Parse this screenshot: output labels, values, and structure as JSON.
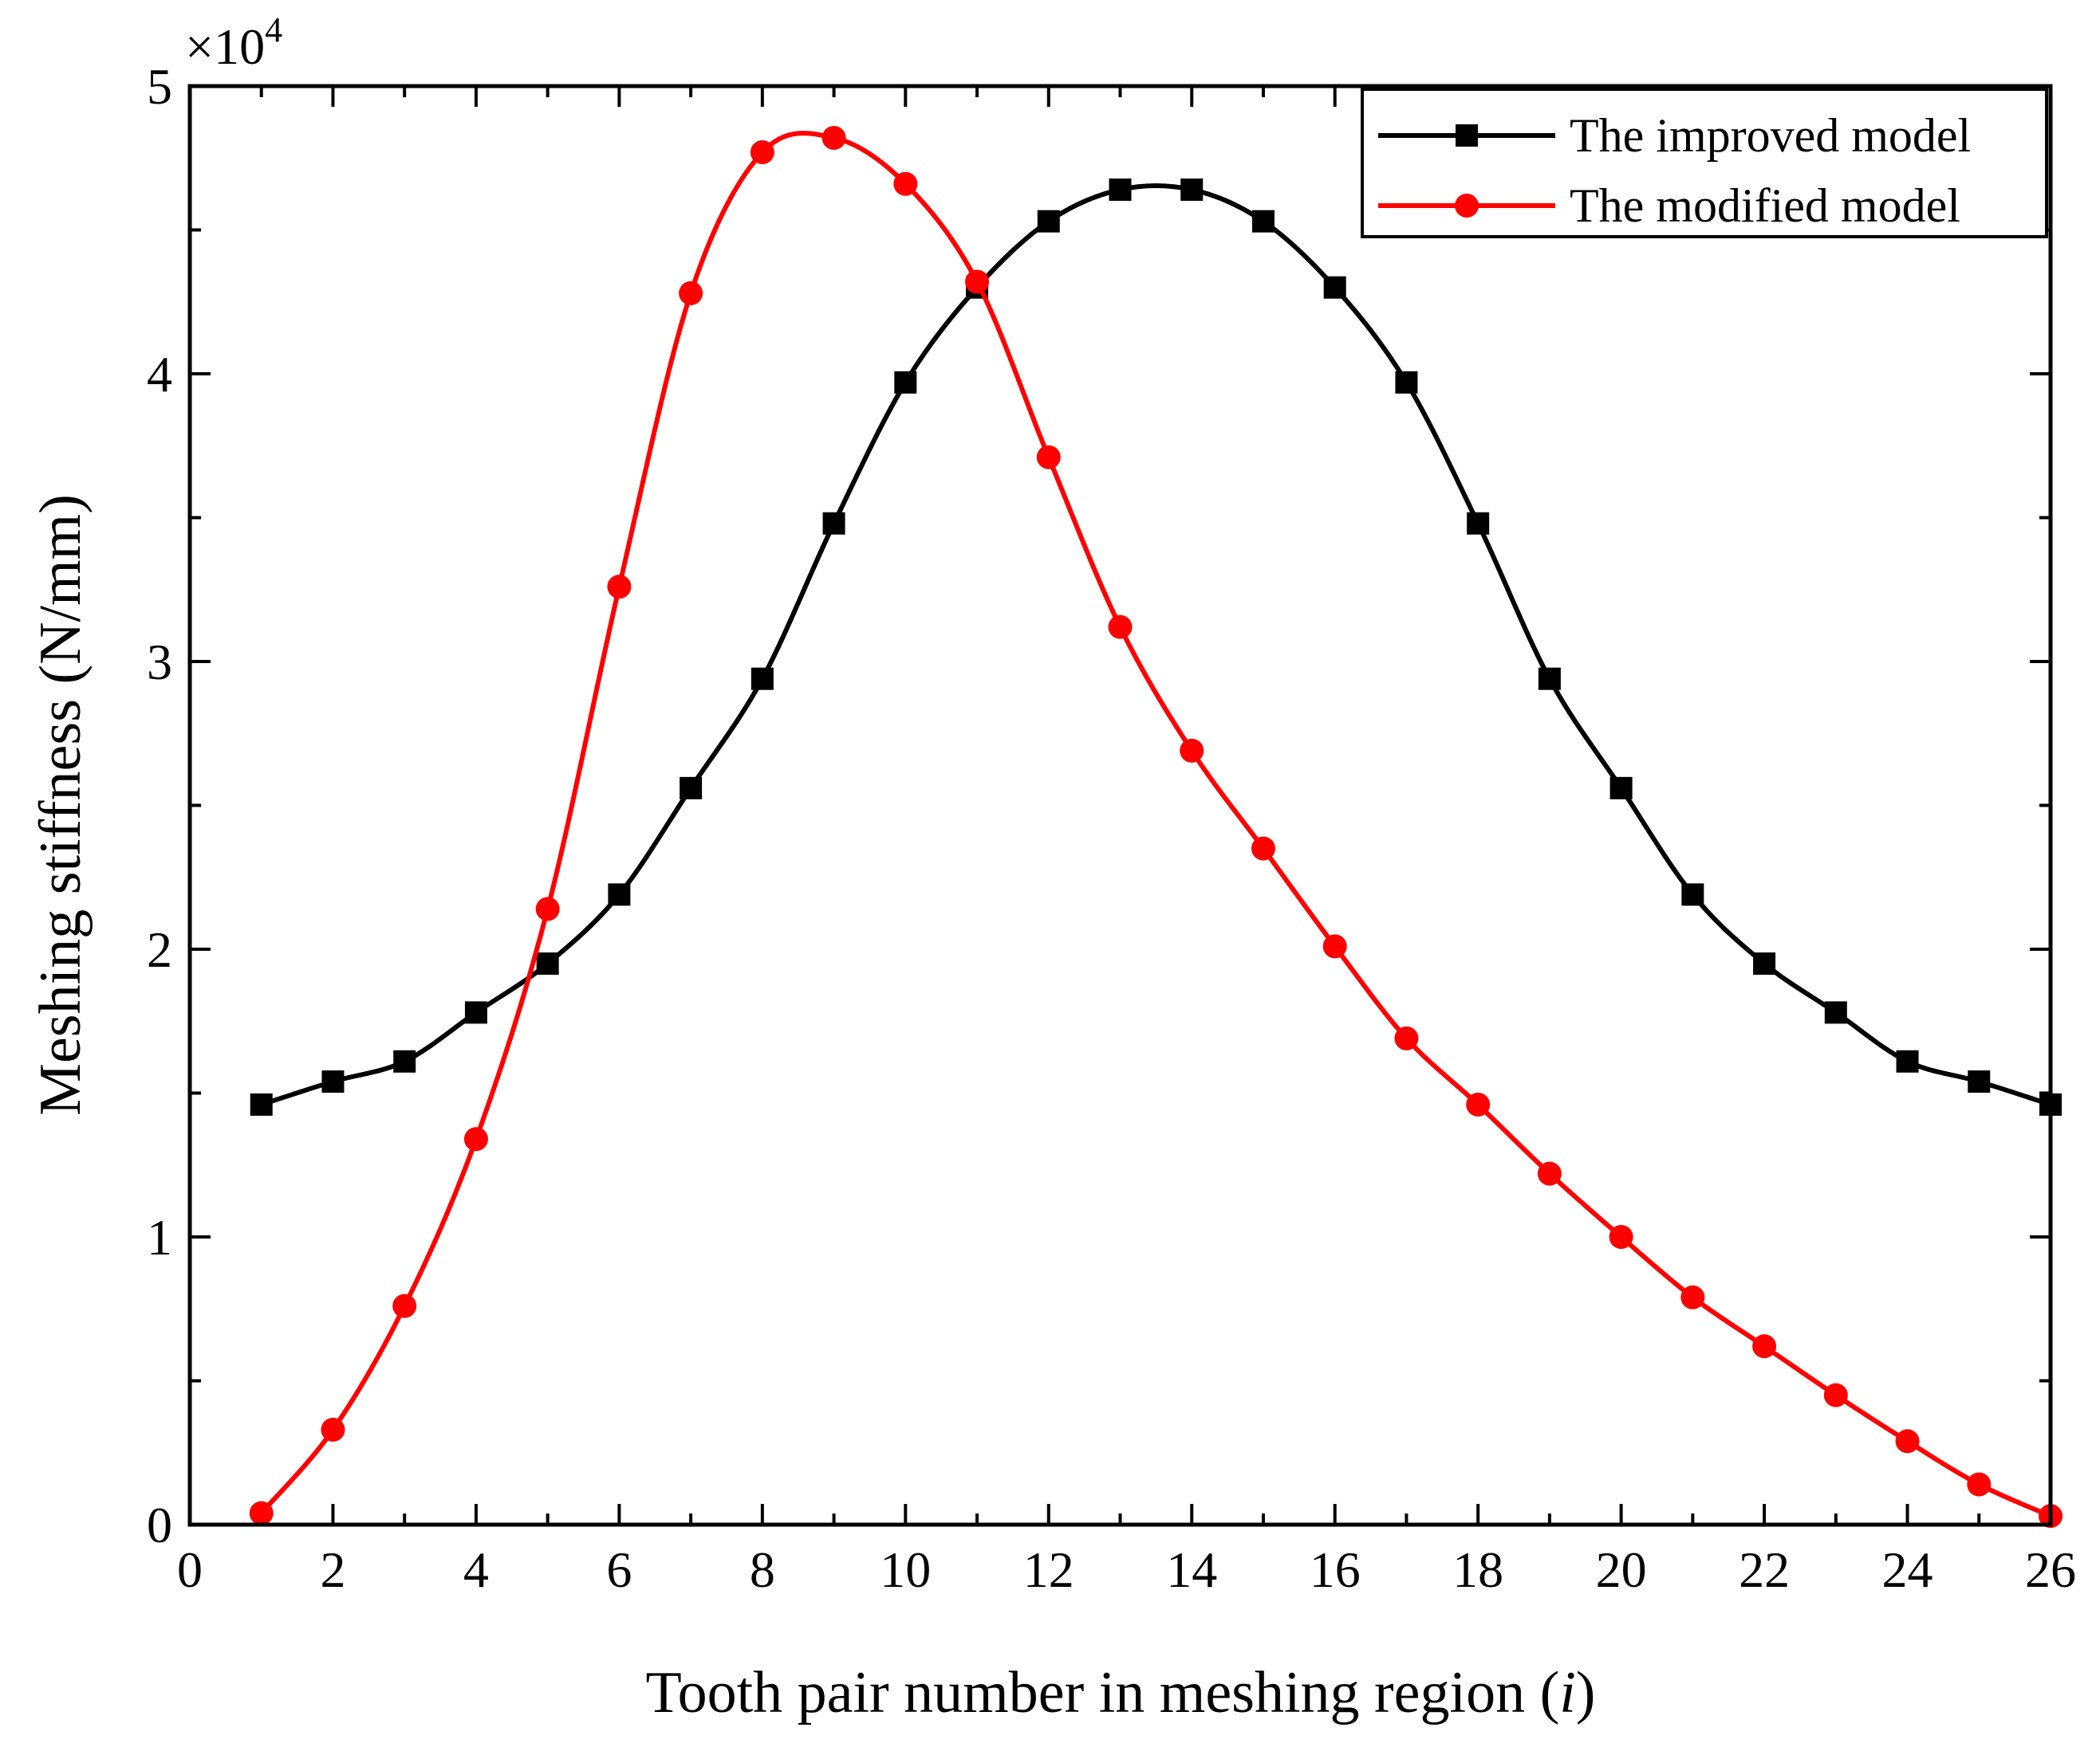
{
  "chart_data": {
    "type": "line",
    "title": "",
    "xlabel": "Tooth pair number in meshing region (",
    "xlabel_var": "i",
    "xlabel_close": ")",
    "ylabel": "Meshing stiffness (N/mm)",
    "y_multiplier": "×10",
    "y_multiplier_exp": "4",
    "xlim": [
      0,
      26
    ],
    "ylim": [
      0,
      5
    ],
    "x_ticks": [
      0,
      2,
      4,
      6,
      8,
      10,
      12,
      14,
      16,
      18,
      20,
      22,
      24,
      26
    ],
    "y_ticks": [
      0,
      1,
      2,
      3,
      4,
      5
    ],
    "x": [
      1,
      2,
      3,
      4,
      5,
      6,
      7,
      8,
      9,
      10,
      11,
      12,
      13,
      14,
      15,
      16,
      17,
      18,
      19,
      20,
      21,
      22,
      23,
      24,
      25,
      26
    ],
    "series": [
      {
        "name": "The improved model",
        "color": "#000000",
        "marker": "square",
        "values": [
          1.46,
          1.54,
          1.61,
          1.78,
          1.95,
          2.19,
          2.56,
          2.94,
          3.48,
          3.97,
          4.3,
          4.53,
          4.64,
          4.64,
          4.53,
          4.3,
          3.97,
          3.48,
          2.94,
          2.56,
          2.19,
          1.95,
          1.78,
          1.61,
          1.54,
          1.46
        ]
      },
      {
        "name": "The modified model",
        "color": "#ff0000",
        "marker": "circle",
        "values": [
          0.04,
          0.33,
          0.76,
          1.34,
          2.14,
          3.26,
          4.28,
          4.77,
          4.82,
          4.66,
          4.32,
          3.71,
          3.12,
          2.69,
          2.35,
          2.01,
          1.69,
          1.46,
          1.22,
          1.0,
          0.79,
          0.62,
          0.45,
          0.29,
          0.14,
          0.03
        ]
      }
    ],
    "legend_position": "top-right"
  }
}
